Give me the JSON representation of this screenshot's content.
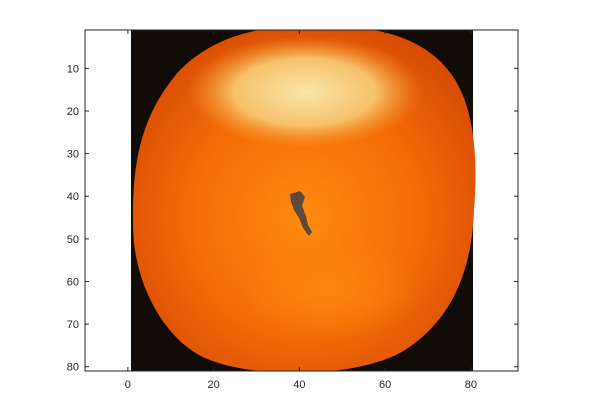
{
  "figure": {
    "image_subject": "orange fruit photo",
    "colors": {
      "background": "#ffffff",
      "image_border_dark": "#120c08",
      "axis": "#262626",
      "fruit_main": "#f36a08",
      "fruit_highlight": "#f7d88e",
      "fruit_shadow": "#d84504",
      "stem": "#5e4838"
    },
    "x_axis": {
      "ticks": [
        "0",
        "20",
        "40",
        "60",
        "80"
      ],
      "tick_values": [
        0,
        20,
        40,
        60,
        80
      ],
      "range": [
        -10,
        91
      ]
    },
    "y_axis": {
      "ticks": [
        "10",
        "20",
        "30",
        "40",
        "50",
        "60",
        "70",
        "80"
      ],
      "tick_values": [
        10,
        20,
        30,
        40,
        50,
        60,
        70,
        80
      ],
      "range": [
        1,
        81
      ],
      "reversed": true
    },
    "image_extent": {
      "x": [
        0.5,
        80.5
      ],
      "y": [
        0.5,
        80.5
      ]
    }
  }
}
